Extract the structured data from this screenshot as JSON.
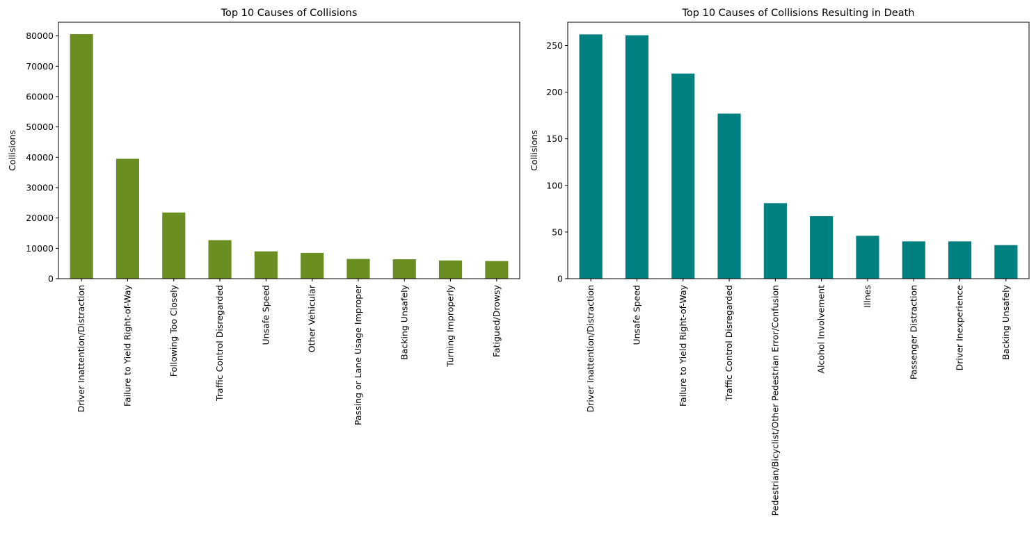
{
  "chart_data": [
    {
      "type": "bar",
      "title": "Top 10 Causes of Collisions",
      "xlabel": "",
      "ylabel": "Collisions",
      "color": "#6b8e23",
      "ylim": [
        0,
        84500
      ],
      "yticks": [
        0,
        10000,
        20000,
        30000,
        40000,
        50000,
        60000,
        70000,
        80000
      ],
      "grid": false,
      "categories": [
        "Driver Inattention/Distraction",
        "Failure to Yield Right-of-Way",
        "Following Too Closely",
        "Traffic Control Disregarded",
        "Unsafe Speed",
        "Other Vehicular",
        "Passing or Lane Usage Improper",
        "Backing Unsafely",
        "Turning Improperly",
        "Fatigued/Drowsy"
      ],
      "values": [
        80600,
        39500,
        21800,
        12700,
        9000,
        8500,
        6500,
        6400,
        6000,
        5800
      ]
    },
    {
      "type": "bar",
      "title": "Top 10 Causes of Collisions Resulting in Death",
      "xlabel": "",
      "ylabel": "Collisions",
      "color": "#008080",
      "ylim": [
        0,
        275
      ],
      "yticks": [
        0,
        50,
        100,
        150,
        200,
        250
      ],
      "grid": false,
      "categories": [
        "Driver Inattention/Distraction",
        "Unsafe Speed",
        "Failure to Yield Right-of-Way",
        "Traffic Control Disregarded",
        "Pedestrian/Bicyclist/Other Pedestrian Error/Confusion",
        "Alcohol Involvement",
        "Illnes",
        "Passenger Distraction",
        "Driver Inexperience",
        "Backing Unsafely"
      ],
      "values": [
        262,
        261,
        220,
        177,
        81,
        67,
        46,
        40,
        40,
        36
      ]
    }
  ]
}
